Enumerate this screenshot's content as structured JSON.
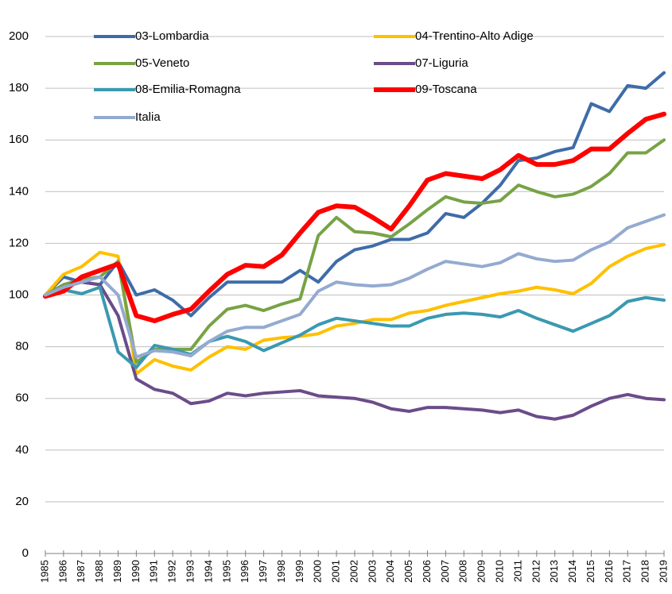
{
  "chart_data": {
    "type": "line",
    "categories": [
      "1985",
      "1986",
      "1987",
      "1988",
      "1989",
      "1990",
      "1991",
      "1992",
      "1993",
      "1994",
      "1995",
      "1996",
      "1997",
      "1998",
      "1999",
      "2000",
      "2001",
      "2002",
      "2003",
      "2004",
      "2005",
      "2006",
      "2007",
      "2008",
      "2009",
      "2010",
      "2011",
      "2012",
      "2013",
      "2014",
      "2015",
      "2016",
      "2017",
      "2018",
      "2019"
    ],
    "ylim": [
      0,
      200
    ],
    "yticks": [
      0,
      20,
      40,
      60,
      80,
      100,
      120,
      140,
      160,
      180,
      200
    ],
    "grid": true,
    "legend": "top",
    "series": [
      {
        "name": "03-Lombardia",
        "color": "#3e6ca8",
        "width": 4,
        "values": [
          100,
          107,
          105,
          104,
          113,
          100,
          102,
          98,
          92,
          99,
          105,
          105,
          105,
          105,
          109.5,
          105,
          113,
          117.5,
          119,
          121.5,
          121.5,
          124,
          131.5,
          130,
          135.5,
          142.5,
          152,
          153,
          155.5,
          157,
          174,
          171,
          181,
          180,
          186
        ]
      },
      {
        "name": "04-Trentino-Alto Adige",
        "color": "#ffc000",
        "width": 4,
        "values": [
          100,
          108,
          111,
          116.5,
          115,
          69.5,
          75,
          72.5,
          71,
          76,
          80,
          79,
          82.5,
          83.5,
          84,
          85,
          88,
          89,
          90.5,
          90.5,
          93,
          94,
          96,
          97.5,
          99,
          100.5,
          101.5,
          103,
          102,
          100.5,
          104.5,
          111,
          115,
          118,
          119.5
        ]
      },
      {
        "name": "05-Veneto",
        "color": "#77a345",
        "width": 4,
        "values": [
          100,
          104,
          106,
          107,
          113,
          74,
          79,
          79,
          79,
          88,
          94.5,
          96,
          94,
          96.5,
          98.5,
          123,
          130,
          124.5,
          124,
          122.5,
          127.5,
          133,
          138,
          136,
          135.5,
          136.5,
          142.5,
          140,
          138,
          139,
          142,
          147,
          155,
          155,
          160
        ]
      },
      {
        "name": "07-Liguria",
        "color": "#6b4c8a",
        "width": 4,
        "values": [
          100,
          103,
          105,
          104,
          92,
          67.5,
          63.5,
          62,
          58,
          59,
          62,
          61,
          62,
          62.5,
          63,
          61,
          60.5,
          60,
          58.5,
          56,
          55,
          56.5,
          56.5,
          56,
          55.5,
          54.5,
          55.5,
          53,
          52,
          53.5,
          57,
          60,
          61.5,
          60,
          59.5
        ]
      },
      {
        "name": "08-Emilia-Romagna",
        "color": "#3a99b0",
        "width": 4,
        "values": [
          100,
          102,
          100.5,
          103,
          78,
          72,
          80.5,
          79,
          77,
          82,
          84,
          82,
          78.5,
          81.5,
          84.5,
          88.5,
          91,
          90,
          89,
          88,
          88,
          91,
          92.5,
          93,
          92.5,
          91.5,
          94,
          91,
          88.5,
          86,
          89,
          92,
          97.5,
          99,
          98
        ]
      },
      {
        "name": "09-Toscana",
        "color": "#ff0000",
        "width": 6,
        "values": [
          99.5,
          101.5,
          107,
          109.5,
          112,
          92,
          90,
          92.5,
          94.5,
          101.5,
          108,
          111.5,
          111,
          115.5,
          124,
          132,
          134.5,
          134,
          130,
          125.5,
          134.5,
          144.5,
          147,
          146,
          145,
          148.5,
          154,
          150.5,
          150.5,
          152,
          156.5,
          156.5,
          162.5,
          168,
          170
        ]
      },
      {
        "name": "Italia",
        "color": "#94aad0",
        "width": 4,
        "values": [
          100,
          103,
          105,
          107,
          100,
          76,
          78.5,
          78,
          76.5,
          82,
          86,
          87.5,
          87.5,
          90,
          92.5,
          101.5,
          105,
          104,
          103.5,
          104,
          106.5,
          110,
          113,
          112,
          111,
          112.5,
          116,
          114,
          113,
          113.5,
          117.5,
          120.5,
          126,
          128.5,
          131
        ]
      }
    ]
  }
}
